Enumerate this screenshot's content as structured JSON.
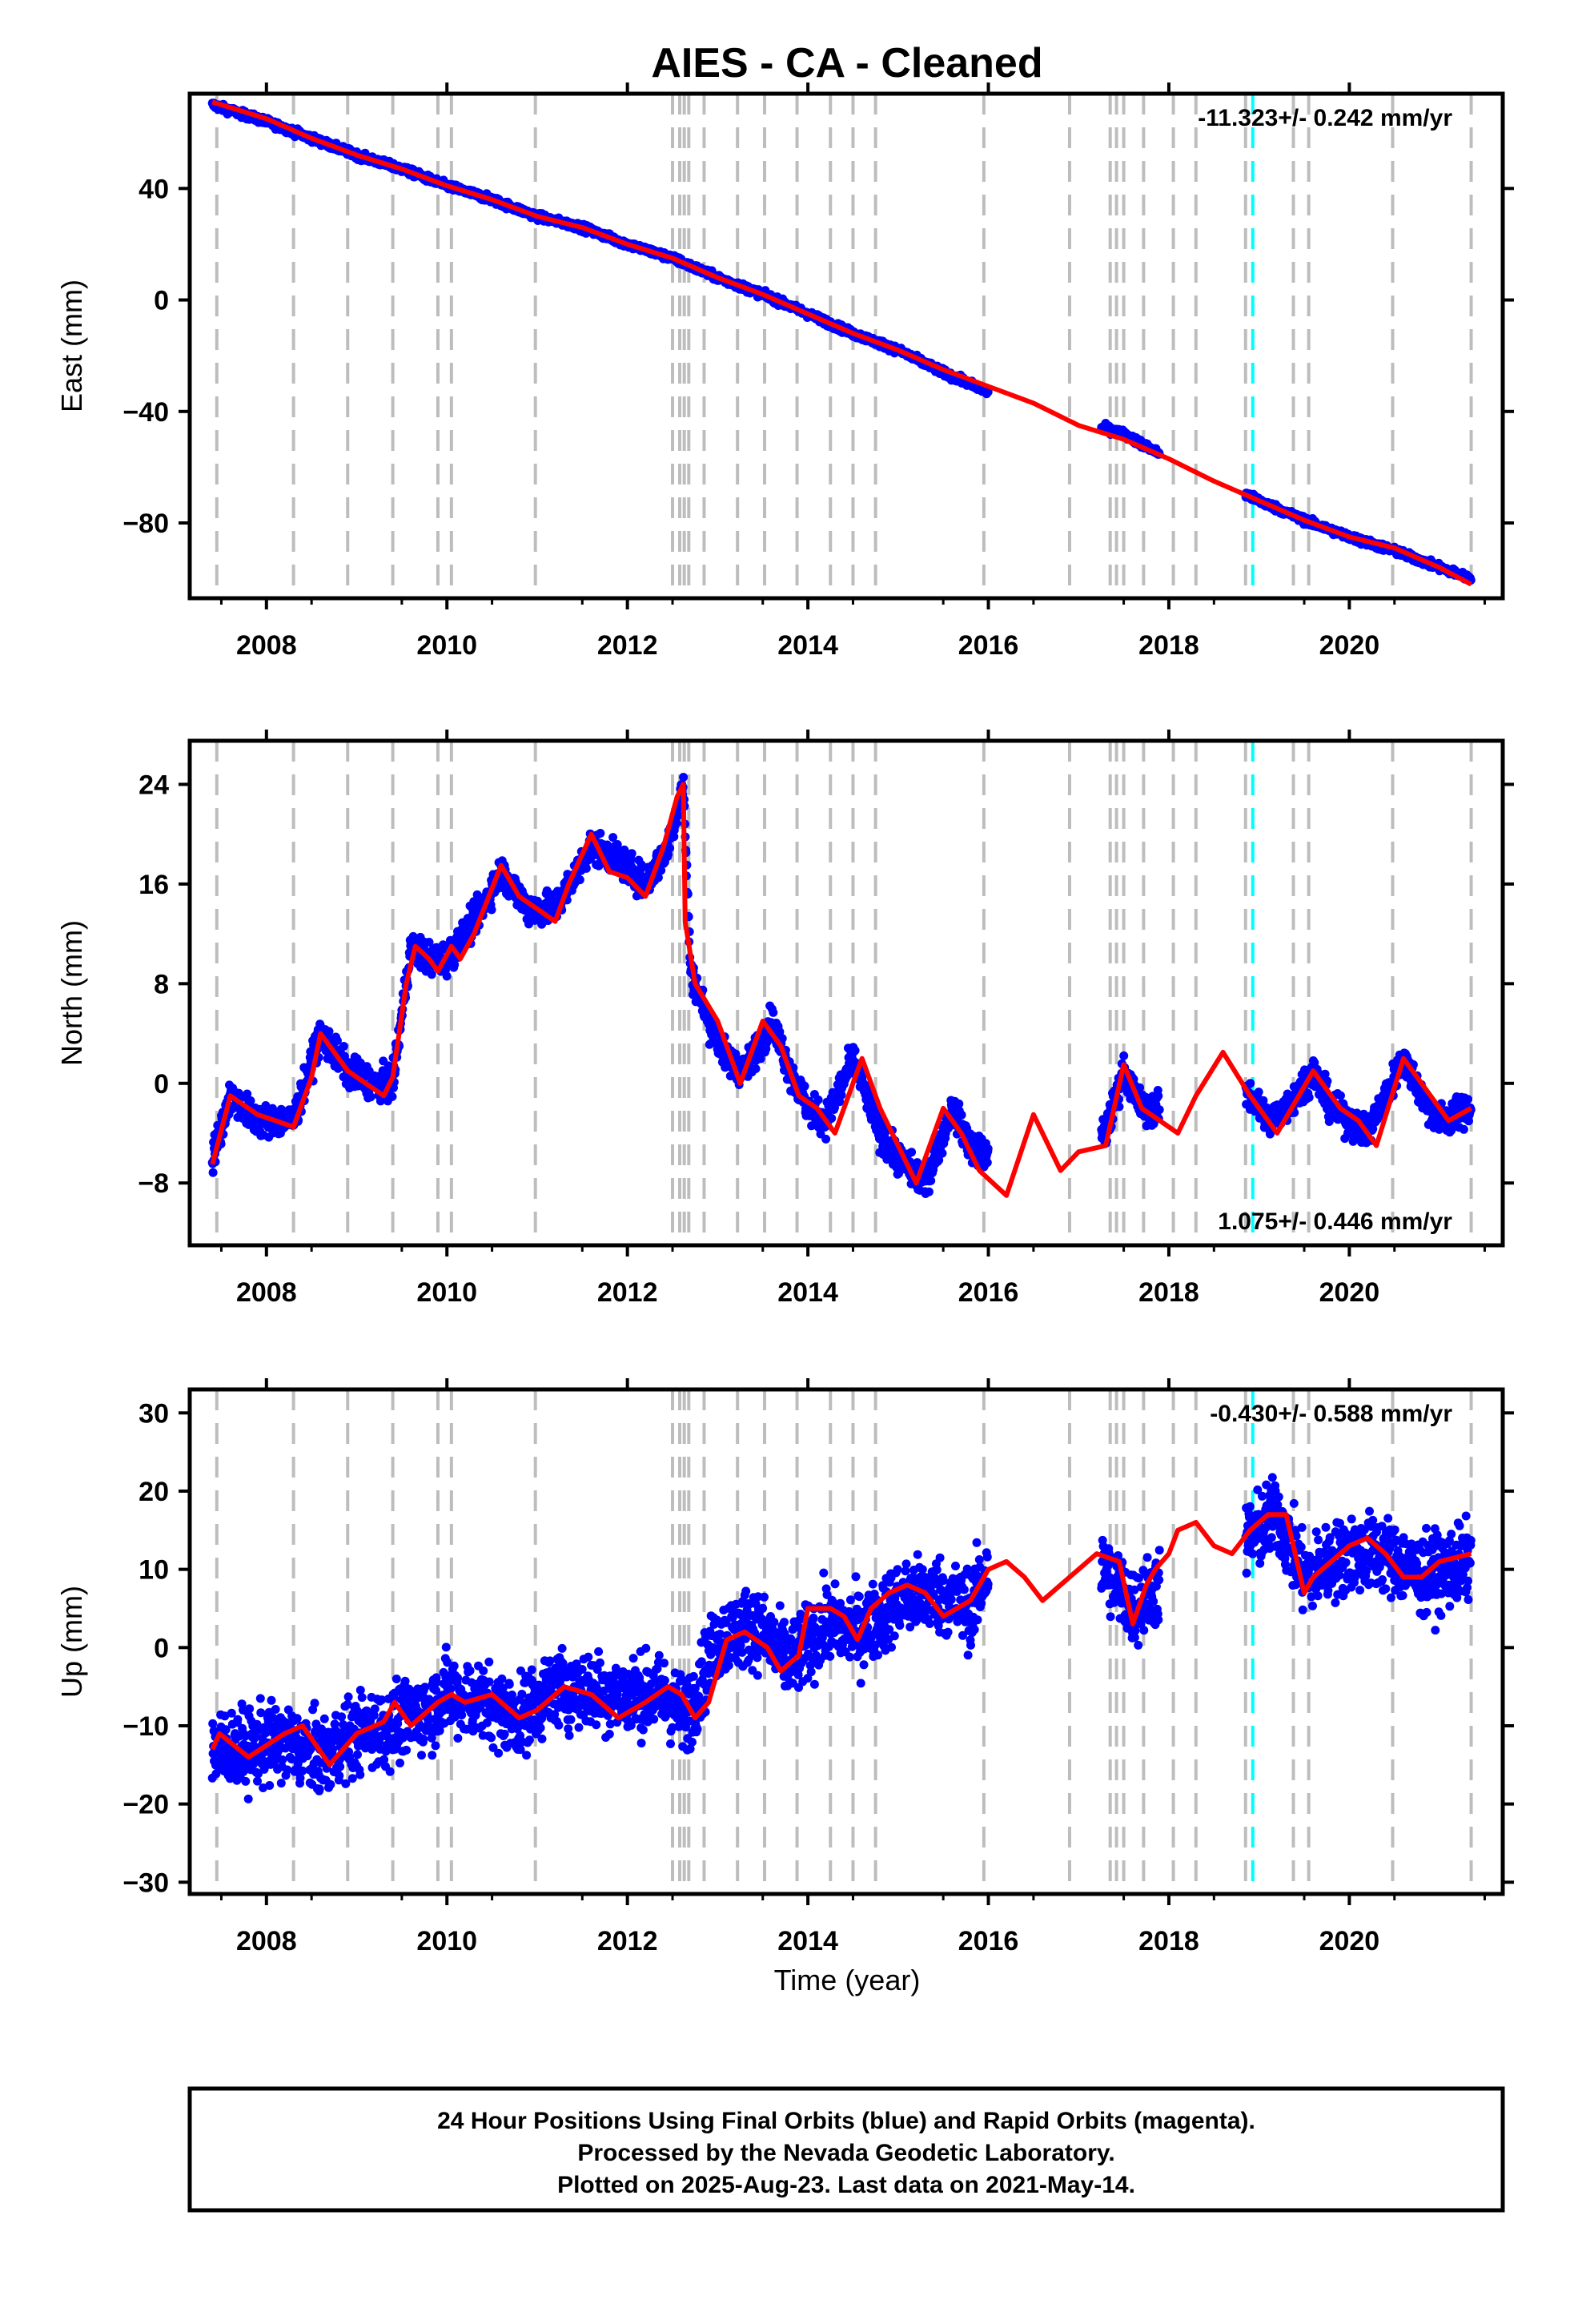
{
  "chart_data": {
    "title": "AIES  - CA - Cleaned",
    "type": "scatter",
    "x_ticks": [
      2008,
      2010,
      2012,
      2014,
      2016,
      2018,
      2020
    ],
    "xlim": [
      2007.15,
      2021.7
    ],
    "xlabel": "Time (year)",
    "event_lines_gray": [
      2007.45,
      2008.3,
      2008.9,
      2009.4,
      2009.9,
      2010.05,
      2010.98,
      2012.5,
      2012.58,
      2012.63,
      2012.68,
      2012.85,
      2013.22,
      2013.52,
      2013.88,
      2014.25,
      2014.5,
      2014.75,
      2015.95,
      2016.9,
      2017.35,
      2017.42,
      2017.5,
      2017.72,
      2018.05,
      2018.3,
      2018.85,
      2019.38,
      2019.55,
      2020.48,
      2021.35
    ],
    "event_lines_cyan": [
      2018.93
    ],
    "data_gaps": [
      [
        2016.0,
        2017.25
      ],
      [
        2017.9,
        2018.85
      ]
    ],
    "panels": [
      {
        "ylabel": "East (mm)",
        "y_ticks": [
          40,
          0,
          -40,
          -80
        ],
        "ylim": [
          -107,
          74
        ],
        "rate_text": "-11.323+/- 0.242 mm/yr",
        "rate_position": "top-right",
        "trend_start": [
          2007.4,
          71
        ],
        "rate": -11.323,
        "series": [
          {
            "name": "Final Orbits",
            "color": "#0000ff",
            "x": [
              2007.4,
              2008.0,
              2008.5,
              2009.0,
              2009.5,
              2010.0,
              2010.5,
              2011.0,
              2011.5,
              2012.0,
              2012.5,
              2013.0,
              2013.5,
              2014.0,
              2014.5,
              2015.0,
              2015.5,
              2016.0,
              2017.5,
              2018.0,
              2019.0,
              2019.5,
              2020.0,
              2020.5,
              2021.0,
              2021.35
            ],
            "values": [
              70,
              64,
              58,
              52,
              47,
              41,
              36,
              30,
              26,
              20,
              15,
              8,
              2,
              -5,
              -12,
              -18,
              -26,
              -33,
              -48,
              -57,
              -72,
              -79,
              -85,
              -90,
              -96,
              -100
            ]
          },
          {
            "name": "Model",
            "color": "#ff0000",
            "x": [
              2007.4,
              2008.0,
              2008.5,
              2009.0,
              2009.5,
              2010.0,
              2010.5,
              2011.0,
              2011.5,
              2012.0,
              2012.5,
              2013.0,
              2013.5,
              2014.0,
              2014.5,
              2015.0,
              2015.5,
              2016.0,
              2016.5,
              2017.0,
              2017.5,
              2018.0,
              2018.5,
              2019.0,
              2019.5,
              2020.0,
              2020.5,
              2021.0,
              2021.35
            ],
            "values": [
              71,
              65,
              58,
              52,
              47,
              41,
              36,
              30,
              26,
              20,
              15,
              8,
              2,
              -5,
              -12,
              -18,
              -25,
              -31,
              -37,
              -45,
              -50,
              -57,
              -65,
              -72,
              -79,
              -85,
              -89,
              -96,
              -102
            ]
          }
        ]
      },
      {
        "ylabel": "North (mm)",
        "y_ticks": [
          24,
          16,
          8,
          0,
          -8
        ],
        "ylim": [
          -13,
          27.5
        ],
        "rate_text": "1.075+/- 0.446 mm/yr",
        "rate_position": "bottom-right",
        "series": [
          {
            "name": "Final Orbits",
            "color": "#0000ff",
            "x": [
              2007.4,
              2007.6,
              2007.9,
              2008.1,
              2008.3,
              2008.6,
              2008.9,
              2009.2,
              2009.4,
              2009.6,
              2009.8,
              2010.0,
              2010.3,
              2010.6,
              2010.9,
              2011.2,
              2011.6,
              2011.9,
              2012.2,
              2012.45,
              2012.62,
              2012.7,
              2012.9,
              2013.1,
              2013.3,
              2013.6,
              2013.8,
              2014.0,
              2014.2,
              2014.5,
              2014.8,
              2015.0,
              2015.3,
              2015.6,
              2015.8,
              2016.0,
              2017.3,
              2017.5,
              2017.7,
              2017.9,
              2018.9,
              2019.1,
              2019.3,
              2019.6,
              2019.8,
              2020.0,
              2020.2,
              2020.6,
              2020.8,
              2021.0,
              2021.35
            ],
            "values": [
              -6,
              -1,
              -3,
              -3,
              -3,
              4,
              1,
              0,
              0,
              11,
              10,
              10,
              13,
              17,
              14,
              14,
              19,
              18,
              16,
              19,
              24,
              9,
              5,
              2,
              1,
              5,
              1,
              -2,
              -3,
              2,
              -4,
              -6,
              -8,
              -2,
              -5,
              -6,
              -4,
              1,
              -2,
              -2,
              -1,
              -3,
              -2,
              1,
              -2,
              -3,
              -4,
              2,
              -1,
              -3,
              -2
            ]
          },
          {
            "name": "Model",
            "color": "#ff0000",
            "x": [
              2007.4,
              2007.6,
              2007.9,
              2008.1,
              2008.3,
              2008.5,
              2008.6,
              2008.9,
              2009.1,
              2009.3,
              2009.4,
              2009.55,
              2009.65,
              2009.8,
              2009.9,
              2010.05,
              2010.15,
              2010.3,
              2010.6,
              2010.8,
              2011.0,
              2011.2,
              2011.35,
              2011.6,
              2011.8,
              2012.0,
              2012.2,
              2012.4,
              2012.55,
              2012.62,
              2012.64,
              2012.75,
              2013.0,
              2013.25,
              2013.5,
              2013.7,
              2013.9,
              2014.1,
              2014.3,
              2014.6,
              2014.8,
              2015.0,
              2015.2,
              2015.5,
              2015.7,
              2015.9,
              2016.2,
              2016.5,
              2016.8,
              2017.0,
              2017.3,
              2017.5,
              2017.7,
              2017.9,
              2018.1,
              2018.3,
              2018.6,
              2018.9,
              2019.2,
              2019.6,
              2019.9,
              2020.1,
              2020.3,
              2020.6,
              2020.9,
              2021.1,
              2021.35
            ],
            "values": [
              -6.5,
              -1,
              -2.5,
              -3,
              -3.5,
              0.5,
              4,
              1,
              0,
              -1,
              0.5,
              8,
              11,
              10,
              9,
              11,
              10,
              12,
              17.5,
              15,
              14,
              13,
              16,
              20,
              17,
              16.5,
              15,
              19,
              23,
              24,
              13,
              8,
              5,
              0,
              5,
              3,
              -1,
              -2,
              -4,
              2,
              -2,
              -5,
              -8,
              -2,
              -4,
              -7,
              -9,
              -2.5,
              -7,
              -5.5,
              -5,
              1.5,
              -2,
              -3,
              -4,
              -1,
              2.5,
              -1,
              -4,
              1,
              -2,
              -3,
              -5,
              2,
              -1,
              -3,
              -2
            ]
          }
        ]
      },
      {
        "ylabel": "Up (mm)",
        "y_ticks": [
          30,
          20,
          10,
          0,
          -10,
          -20,
          -30
        ],
        "ylim": [
          -31.5,
          33
        ],
        "rate_text": "-0.430+/- 0.588 mm/yr",
        "rate_position": "top-right",
        "series": [
          {
            "name": "Final Orbits",
            "color": "#0000ff",
            "x": [
              2007.4,
              2007.8,
              2008.2,
              2008.6,
              2009.0,
              2009.4,
              2009.8,
              2010.0,
              2010.4,
              2010.8,
              2011.2,
              2012.0,
              2012.4,
              2012.65,
              2013.0,
              2013.4,
              2013.8,
              2014.2,
              2014.6,
              2015.0,
              2015.4,
              2015.8,
              2016.0,
              2017.3,
              2017.6,
              2017.9,
              2018.9,
              2019.2,
              2019.5,
              2020.0,
              2020.4,
              2020.8,
              2021.35
            ],
            "values": [
              -13,
              -13,
              -12,
              -14,
              -11,
              -10,
              -8,
              -6,
              -7,
              -9,
              -5,
              -6,
              -6,
              -9,
              1,
              3,
              -2,
              3,
              2,
              6,
              7,
              5,
              10,
              10,
              5,
              8,
              14,
              17,
              9,
              12,
              12,
              9,
              11
            ]
          },
          {
            "name": "Model",
            "color": "#ff0000",
            "x": [
              2007.4,
              2007.48,
              2007.8,
              2008.2,
              2008.4,
              2008.7,
              2009.0,
              2009.3,
              2009.42,
              2009.6,
              2009.9,
              2010.05,
              2010.2,
              2010.5,
              2010.8,
              2011.0,
              2011.3,
              2011.6,
              2011.9,
              2012.2,
              2012.45,
              2012.6,
              2012.75,
              2012.9,
              2013.1,
              2013.3,
              2013.55,
              2013.7,
              2013.9,
              2014.0,
              2014.25,
              2014.4,
              2014.55,
              2014.7,
              2014.9,
              2015.1,
              2015.3,
              2015.5,
              2015.8,
              2016.0,
              2016.2,
              2016.4,
              2016.6,
              2016.9,
              2017.2,
              2017.45,
              2017.6,
              2017.75,
              2017.85,
              2018.0,
              2018.1,
              2018.3,
              2018.5,
              2018.7,
              2018.9,
              2019.1,
              2019.3,
              2019.5,
              2019.6,
              2019.8,
              2020.0,
              2020.2,
              2020.4,
              2020.6,
              2020.8,
              2021.0,
              2021.35
            ],
            "values": [
              -13,
              -11,
              -14,
              -11,
              -10,
              -15,
              -11,
              -9.5,
              -7,
              -10,
              -7,
              -6,
              -7,
              -6,
              -9,
              -8,
              -5,
              -6,
              -9,
              -7,
              -5,
              -6,
              -9,
              -7,
              1,
              2,
              0,
              -3,
              -1,
              5,
              5,
              4,
              1,
              5,
              7,
              8,
              7,
              4,
              6,
              10,
              11,
              9,
              6,
              9,
              12,
              11,
              3,
              8,
              10,
              12,
              15,
              16,
              13,
              12,
              15,
              17,
              17,
              7,
              9,
              11,
              13,
              14,
              12,
              9,
              9,
              11,
              12
            ]
          }
        ]
      }
    ],
    "footer_lines": [
      "24 Hour Positions Using Final Orbits (blue) and Rapid Orbits (magenta).",
      "Processed by the Nevada Geodetic Laboratory.",
      "Plotted on 2025-Aug-23. Last data on 2021-May-14."
    ]
  }
}
